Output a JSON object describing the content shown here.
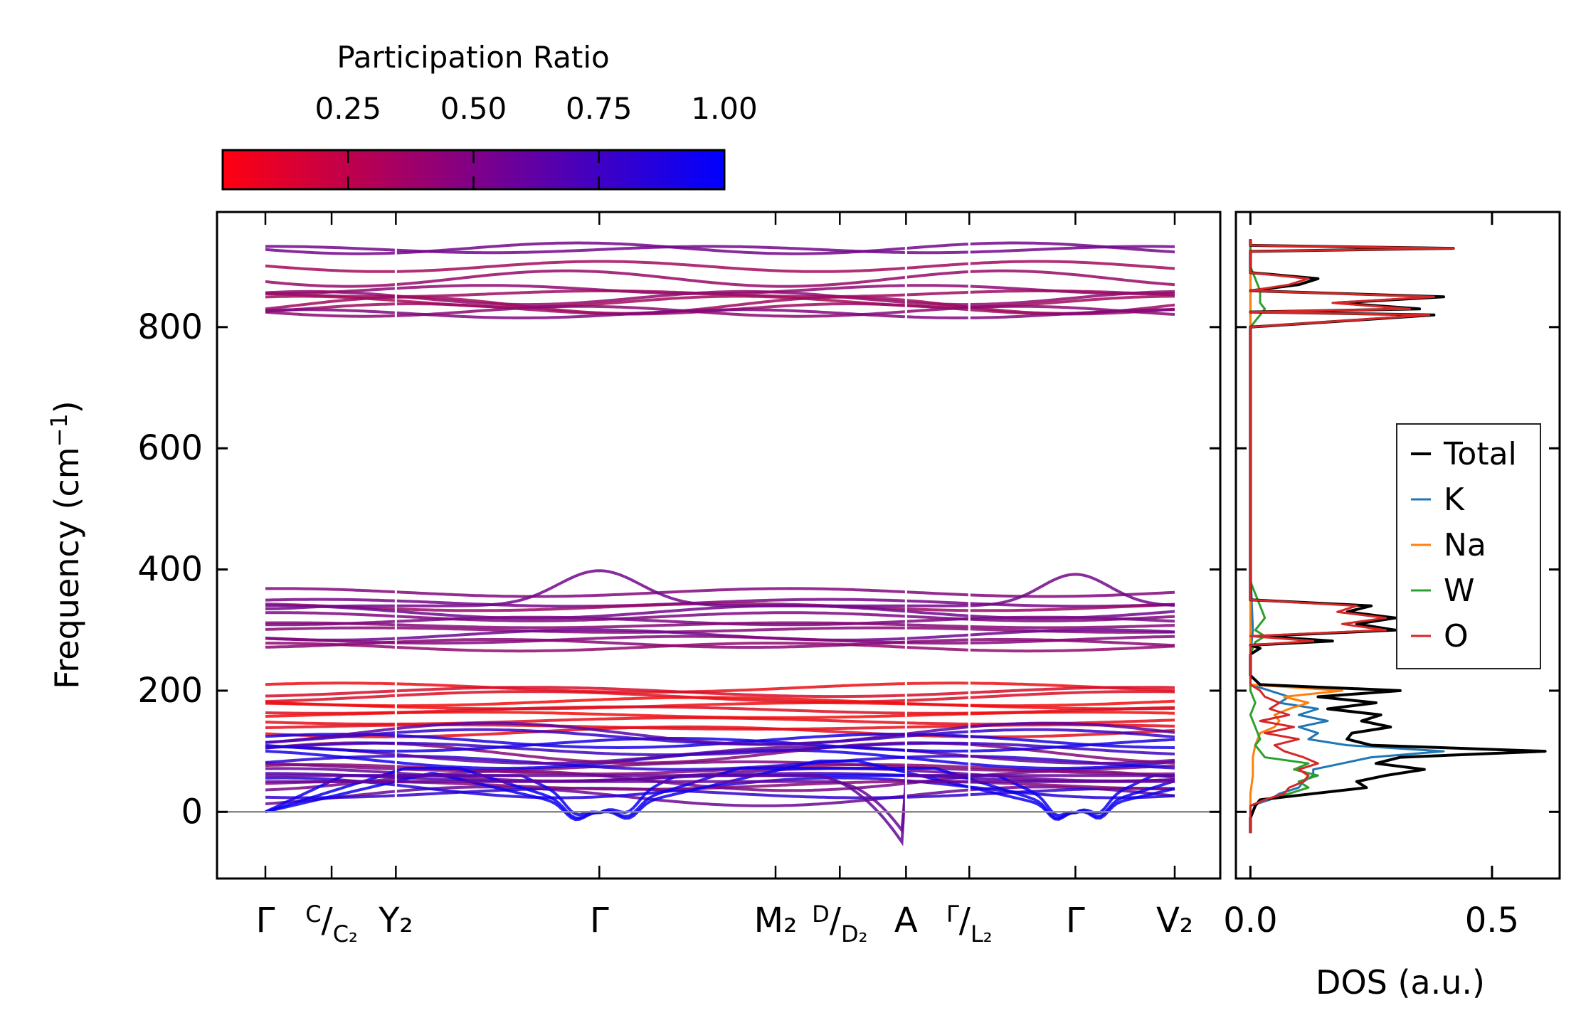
{
  "chart_data": [
    {
      "type": "line",
      "name": "phonon-band-structure",
      "title": "",
      "xlabel": "",
      "ylabel": "Frequency (cm⁻¹)",
      "ylabel_parts": {
        "main": "Frequency (cm",
        "sup": "−1",
        "close": ")"
      },
      "ylim": [
        -110,
        990
      ],
      "yticks": [
        0,
        200,
        400,
        600,
        800
      ],
      "zero_line": true,
      "high_symmetry_points": [
        {
          "label": "Γ",
          "pos": 0.0
        },
        {
          "label": "C|C₂",
          "pos": 0.068,
          "display": {
            "pre": "",
            "sup": "C",
            "slash": "/",
            "sub": "C₂"
          }
        },
        {
          "label": "Y₂",
          "pos": 0.134
        },
        {
          "label": "Γ",
          "pos": 0.343
        },
        {
          "label": "M₂",
          "pos": 0.524
        },
        {
          "label": "D|D₂",
          "pos": 0.59,
          "display": {
            "pre": "",
            "sup": "D",
            "slash": "/",
            "sub": "D₂"
          }
        },
        {
          "label": "A",
          "pos": 0.658
        },
        {
          "label": "Γ|L₂",
          "pos": 0.723,
          "display": {
            "pre": "",
            "sup": "Γ",
            "slash": "/",
            "sub": "L₂"
          }
        },
        {
          "label": "Γ",
          "pos": 0.832
        },
        {
          "label": "V₂",
          "pos": 0.934
        }
      ],
      "xtick_labels": [
        "Γ",
        "C/C₂",
        "Y₂",
        "Γ",
        "M₂",
        "D/D₂",
        "A",
        "Γ/L₂",
        "Γ",
        "V₂"
      ],
      "bands_summary": {
        "high_band_cm1": [
          820,
          935
        ],
        "mid_band_cm1": [
          270,
          398
        ],
        "low_band_cm1": [
          -60,
          215
        ],
        "gamma_peak_mid_cm1": 398,
        "second_gamma_peak_mid_cm1": 393,
        "min_imaginary_cm1": -60,
        "imaginary_near_gamma_cm1": -22
      },
      "colormap": {
        "quantity": "Participation Ratio",
        "range": [
          0.0,
          1.0
        ],
        "low_color": "#ff0000",
        "high_color": "#0000ff",
        "note": "low-frequency acoustic modes ~1.0 (blue); 130-210 cm-1 modes ~0.1 (red); others ~0.4-0.6 (purple)"
      }
    },
    {
      "type": "line",
      "name": "phonon-dos",
      "xlabel": "DOS (a.u.)",
      "ylabel": "",
      "xlim": [
        -0.03,
        0.64
      ],
      "xticks": [
        0.0,
        0.5
      ],
      "xtick_labels": [
        "0.0",
        "0.5"
      ],
      "ylim": [
        -110,
        990
      ],
      "legend": {
        "placement": "center-right",
        "entries": [
          "Total",
          "K",
          "Na",
          "W",
          "O"
        ]
      },
      "series": [
        {
          "name": "Total",
          "color": "#000000",
          "points": [
            [
              -35,
              0.0
            ],
            [
              -10,
              0.0
            ],
            [
              10,
              0.01
            ],
            [
              20,
              0.02
            ],
            [
              30,
              0.13
            ],
            [
              40,
              0.24
            ],
            [
              50,
              0.22
            ],
            [
              60,
              0.28
            ],
            [
              70,
              0.36
            ],
            [
              80,
              0.26
            ],
            [
              90,
              0.31
            ],
            [
              100,
              0.61
            ],
            [
              110,
              0.25
            ],
            [
              120,
              0.2
            ],
            [
              130,
              0.21
            ],
            [
              140,
              0.29
            ],
            [
              150,
              0.23
            ],
            [
              160,
              0.27
            ],
            [
              170,
              0.16
            ],
            [
              180,
              0.26
            ],
            [
              190,
              0.14
            ],
            [
              200,
              0.31
            ],
            [
              210,
              0.02
            ],
            [
              225,
              0.0
            ],
            [
              260,
              0.0
            ],
            [
              270,
              0.02
            ],
            [
              275,
              0.0
            ],
            [
              282,
              0.17
            ],
            [
              290,
              0.02
            ],
            [
              300,
              0.3
            ],
            [
              310,
              0.22
            ],
            [
              320,
              0.3
            ],
            [
              330,
              0.2
            ],
            [
              340,
              0.25
            ],
            [
              350,
              0.0
            ],
            [
              370,
              0.0
            ],
            [
              400,
              0.0
            ],
            [
              600,
              0.0
            ],
            [
              800,
              0.0
            ],
            [
              820,
              0.38
            ],
            [
              825,
              0.0
            ],
            [
              830,
              0.35
            ],
            [
              840,
              0.18
            ],
            [
              850,
              0.4
            ],
            [
              860,
              0.0
            ],
            [
              870,
              0.1
            ],
            [
              880,
              0.14
            ],
            [
              890,
              0.0
            ],
            [
              925,
              0.0
            ],
            [
              930,
              0.42
            ],
            [
              935,
              0.0
            ],
            [
              945,
              0.0
            ]
          ]
        },
        {
          "name": "K",
          "color": "#1f77b4",
          "points": [
            [
              -35,
              0.0
            ],
            [
              10,
              0.0
            ],
            [
              20,
              0.04
            ],
            [
              30,
              0.06
            ],
            [
              40,
              0.1
            ],
            [
              50,
              0.11
            ],
            [
              60,
              0.13
            ],
            [
              70,
              0.13
            ],
            [
              80,
              0.19
            ],
            [
              90,
              0.25
            ],
            [
              100,
              0.4
            ],
            [
              110,
              0.2
            ],
            [
              120,
              0.12
            ],
            [
              130,
              0.14
            ],
            [
              140,
              0.1
            ],
            [
              150,
              0.16
            ],
            [
              160,
              0.1
            ],
            [
              170,
              0.14
            ],
            [
              180,
              0.06
            ],
            [
              190,
              0.08
            ],
            [
              200,
              0.04
            ],
            [
              210,
              0.0
            ],
            [
              260,
              0.0
            ],
            [
              300,
              0.005
            ],
            [
              400,
              0.0
            ],
            [
              945,
              0.0
            ]
          ]
        },
        {
          "name": "Na",
          "color": "#ff7f0e",
          "points": [
            [
              -35,
              0.0
            ],
            [
              10,
              0.0
            ],
            [
              30,
              0.0
            ],
            [
              60,
              0.005
            ],
            [
              90,
              0.005
            ],
            [
              110,
              0.01
            ],
            [
              130,
              0.02
            ],
            [
              140,
              0.05
            ],
            [
              150,
              0.06
            ],
            [
              160,
              0.05
            ],
            [
              170,
              0.08
            ],
            [
              180,
              0.12
            ],
            [
              190,
              0.07
            ],
            [
              200,
              0.19
            ],
            [
              210,
              0.0
            ],
            [
              260,
              0.0
            ],
            [
              400,
              0.0
            ],
            [
              945,
              0.0
            ]
          ]
        },
        {
          "name": "W",
          "color": "#2ca02c",
          "points": [
            [
              -35,
              0.0
            ],
            [
              10,
              0.0
            ],
            [
              20,
              0.03
            ],
            [
              30,
              0.08
            ],
            [
              40,
              0.12
            ],
            [
              50,
              0.1
            ],
            [
              60,
              0.14
            ],
            [
              70,
              0.09
            ],
            [
              80,
              0.12
            ],
            [
              90,
              0.03
            ],
            [
              100,
              0.02
            ],
            [
              110,
              0.01
            ],
            [
              120,
              0.02
            ],
            [
              140,
              0.01
            ],
            [
              160,
              0.0
            ],
            [
              180,
              0.01
            ],
            [
              200,
              0.0
            ],
            [
              260,
              0.0
            ],
            [
              280,
              0.01
            ],
            [
              290,
              0.03
            ],
            [
              300,
              0.01
            ],
            [
              320,
              0.03
            ],
            [
              340,
              0.02
            ],
            [
              380,
              0.0
            ],
            [
              800,
              0.0
            ],
            [
              820,
              0.02
            ],
            [
              830,
              0.03
            ],
            [
              840,
              0.02
            ],
            [
              860,
              0.02
            ],
            [
              880,
              0.01
            ],
            [
              900,
              0.0
            ],
            [
              945,
              0.0
            ]
          ]
        },
        {
          "name": "O",
          "color": "#d62728",
          "points": [
            [
              -35,
              0.0
            ],
            [
              10,
              0.0
            ],
            [
              20,
              0.03
            ],
            [
              30,
              0.07
            ],
            [
              40,
              0.08
            ],
            [
              50,
              0.11
            ],
            [
              60,
              0.12
            ],
            [
              70,
              0.1
            ],
            [
              80,
              0.14
            ],
            [
              90,
              0.11
            ],
            [
              100,
              0.07
            ],
            [
              110,
              0.05
            ],
            [
              120,
              0.1
            ],
            [
              130,
              0.03
            ],
            [
              140,
              0.09
            ],
            [
              150,
              0.02
            ],
            [
              160,
              0.08
            ],
            [
              170,
              0.04
            ],
            [
              180,
              0.06
            ],
            [
              190,
              0.03
            ],
            [
              200,
              0.02
            ],
            [
              210,
              0.0
            ],
            [
              260,
              0.0
            ],
            [
              275,
              0.0
            ],
            [
              282,
              0.13
            ],
            [
              290,
              0.0
            ],
            [
              300,
              0.28
            ],
            [
              310,
              0.19
            ],
            [
              320,
              0.28
            ],
            [
              330,
              0.18
            ],
            [
              340,
              0.22
            ],
            [
              350,
              0.0
            ],
            [
              400,
              0.0
            ],
            [
              800,
              0.0
            ],
            [
              820,
              0.37
            ],
            [
              825,
              0.0
            ],
            [
              830,
              0.33
            ],
            [
              840,
              0.17
            ],
            [
              850,
              0.38
            ],
            [
              860,
              0.0
            ],
            [
              870,
              0.08
            ],
            [
              880,
              0.12
            ],
            [
              890,
              0.0
            ],
            [
              925,
              0.0
            ],
            [
              930,
              0.42
            ],
            [
              935,
              0.0
            ],
            [
              945,
              0.0
            ]
          ]
        }
      ]
    }
  ],
  "colorbar": {
    "title": "Participation Ratio",
    "ticks": [
      0.25,
      0.5,
      0.75,
      1.0
    ],
    "tick_labels": [
      "0.25",
      "0.50",
      "0.75",
      "1.00"
    ],
    "range": [
      0.0,
      1.0
    ],
    "colors": [
      "#ff0000",
      "#0000ff"
    ]
  }
}
